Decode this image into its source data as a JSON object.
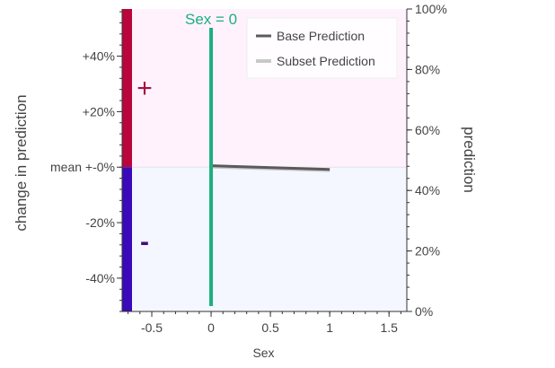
{
  "chart_data": {
    "type": "line",
    "xlabel": "Sex",
    "ylabel_left": "change in prediction",
    "ylabel_right": "prediction",
    "xlim": [
      -0.75,
      1.65
    ],
    "x_ticks": [
      -0.5,
      0,
      0.5,
      1,
      1.5
    ],
    "x_tick_labels": [
      "-0.5",
      "0",
      "0.5",
      "1",
      "1.5"
    ],
    "ylim_left": [
      -52,
      57
    ],
    "y_left_ticks": [
      40,
      20,
      0,
      -20,
      -40
    ],
    "y_left_tick_labels": [
      "+40%",
      "+20%",
      "mean +-0%",
      "-20%",
      "-40%"
    ],
    "ylim_right": [
      0,
      100
    ],
    "y_right_ticks": [
      100,
      80,
      60,
      40,
      20,
      0
    ],
    "y_right_tick_labels": [
      "100%",
      "80%",
      "60%",
      "40%",
      "20%",
      "0%"
    ],
    "series": [
      {
        "name": "Base Prediction",
        "color": "#5a5a5a",
        "x": [
          0,
          1
        ],
        "y": [
          0.5,
          -0.8
        ]
      },
      {
        "name": "Subset Prediction",
        "color": "#c8c8c8",
        "x": [
          0,
          1
        ],
        "y": [
          0.2,
          -1.1
        ]
      }
    ],
    "marker": {
      "label": "Sex = 0",
      "x": 0,
      "color": "#1aaf7f"
    },
    "plus_sign": "+",
    "minus_sign": "-",
    "colors": {
      "positive_region": "#fff2fc",
      "negative_region": "#f4f7ff",
      "positive_bar": "#b8063d",
      "negative_bar": "#3a0ab8",
      "plus_text": "#a1123f",
      "minus_text": "#4a0a7a"
    },
    "legend_position": "top-right",
    "grid": false
  }
}
